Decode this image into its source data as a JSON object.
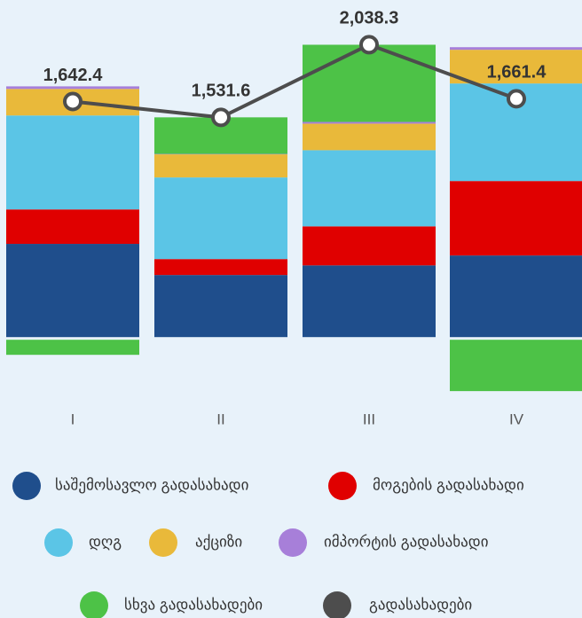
{
  "chart_data": {
    "type": "bar",
    "stacked": true,
    "categories": [
      "I",
      "II",
      "III",
      "IV"
    ],
    "ylim": [
      -450,
      2350
    ],
    "series": [
      {
        "name": "საშემოსავლო გადასახადი",
        "color": "#1f4e8c",
        "values": [
          650,
          433,
          500,
          569
        ]
      },
      {
        "name": "მოგების გადასახადი",
        "color": "#e00000",
        "values": [
          240,
          111,
          272,
          519
        ]
      },
      {
        "name": "დღგ",
        "color": "#5bc5e6",
        "values": [
          655,
          569,
          531,
          680
        ]
      },
      {
        "name": "აქციზი",
        "color": "#e9b93a",
        "values": [
          185,
          161,
          185,
          235
        ]
      },
      {
        "name": "იმპორტის გადასახადი",
        "color": "#a77fd9",
        "values": [
          18,
          3,
          12,
          18
        ]
      },
      {
        "name": "სხვა გადასახადები",
        "color": "#4dc247",
        "values": [
          -105,
          255,
          538,
          -358
        ]
      },
      {
        "name": "გადასახადები",
        "color": "#4d4d4d",
        "type": "line",
        "values": [
          1642.4,
          1531.6,
          2038.3,
          1661.4
        ],
        "value_labels": [
          "1,642.4",
          "1,531.6",
          "2,038.3",
          "1,661.4"
        ]
      }
    ]
  }
}
